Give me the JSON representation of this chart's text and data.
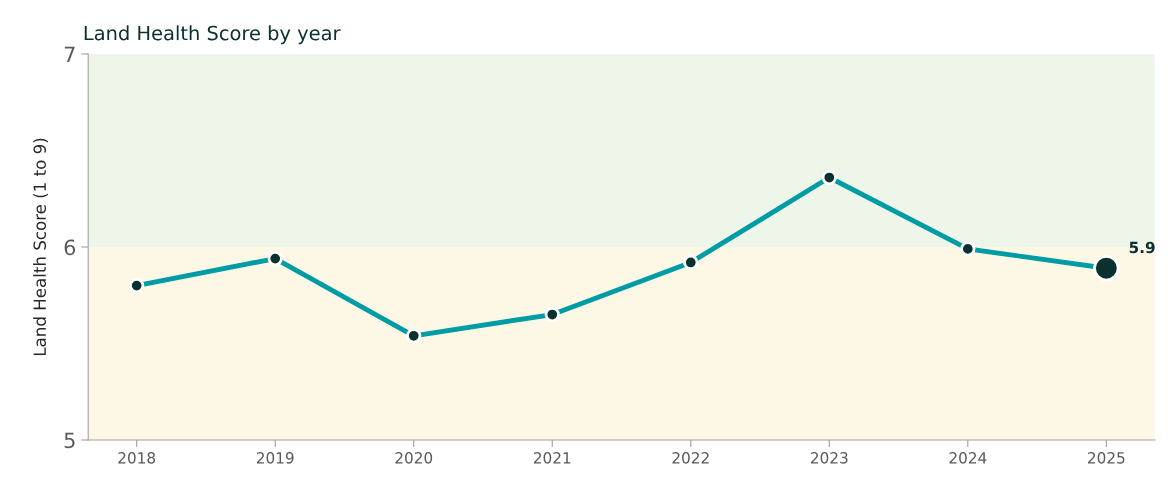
{
  "chart_data": {
    "type": "line",
    "title": "Land Health Score by year",
    "ylabel": "Land Health Score (1 to 9)",
    "categories": [
      "2018",
      "2019",
      "2020",
      "2021",
      "2022",
      "2023",
      "2024",
      "2025"
    ],
    "series": [
      {
        "color": "#009ca6",
        "values": [
          5.8,
          5.94,
          5.54,
          5.65,
          5.92,
          6.36,
          5.99,
          5.89
        ],
        "value_labels": [
          null,
          null,
          null,
          null,
          null,
          null,
          null,
          "5.9"
        ]
      }
    ],
    "ylim": [
      5,
      7
    ],
    "yticks": [
      5,
      6,
      7
    ],
    "marker": "circle",
    "line_style": "solid",
    "grid": false,
    "legend": false,
    "bands": [
      {
        "axis": "y",
        "from": 6,
        "to": 7,
        "color": "#eef5e9"
      },
      {
        "axis": "y",
        "from": 5,
        "to": 6,
        "color": "#fdf8e6"
      }
    ]
  }
}
